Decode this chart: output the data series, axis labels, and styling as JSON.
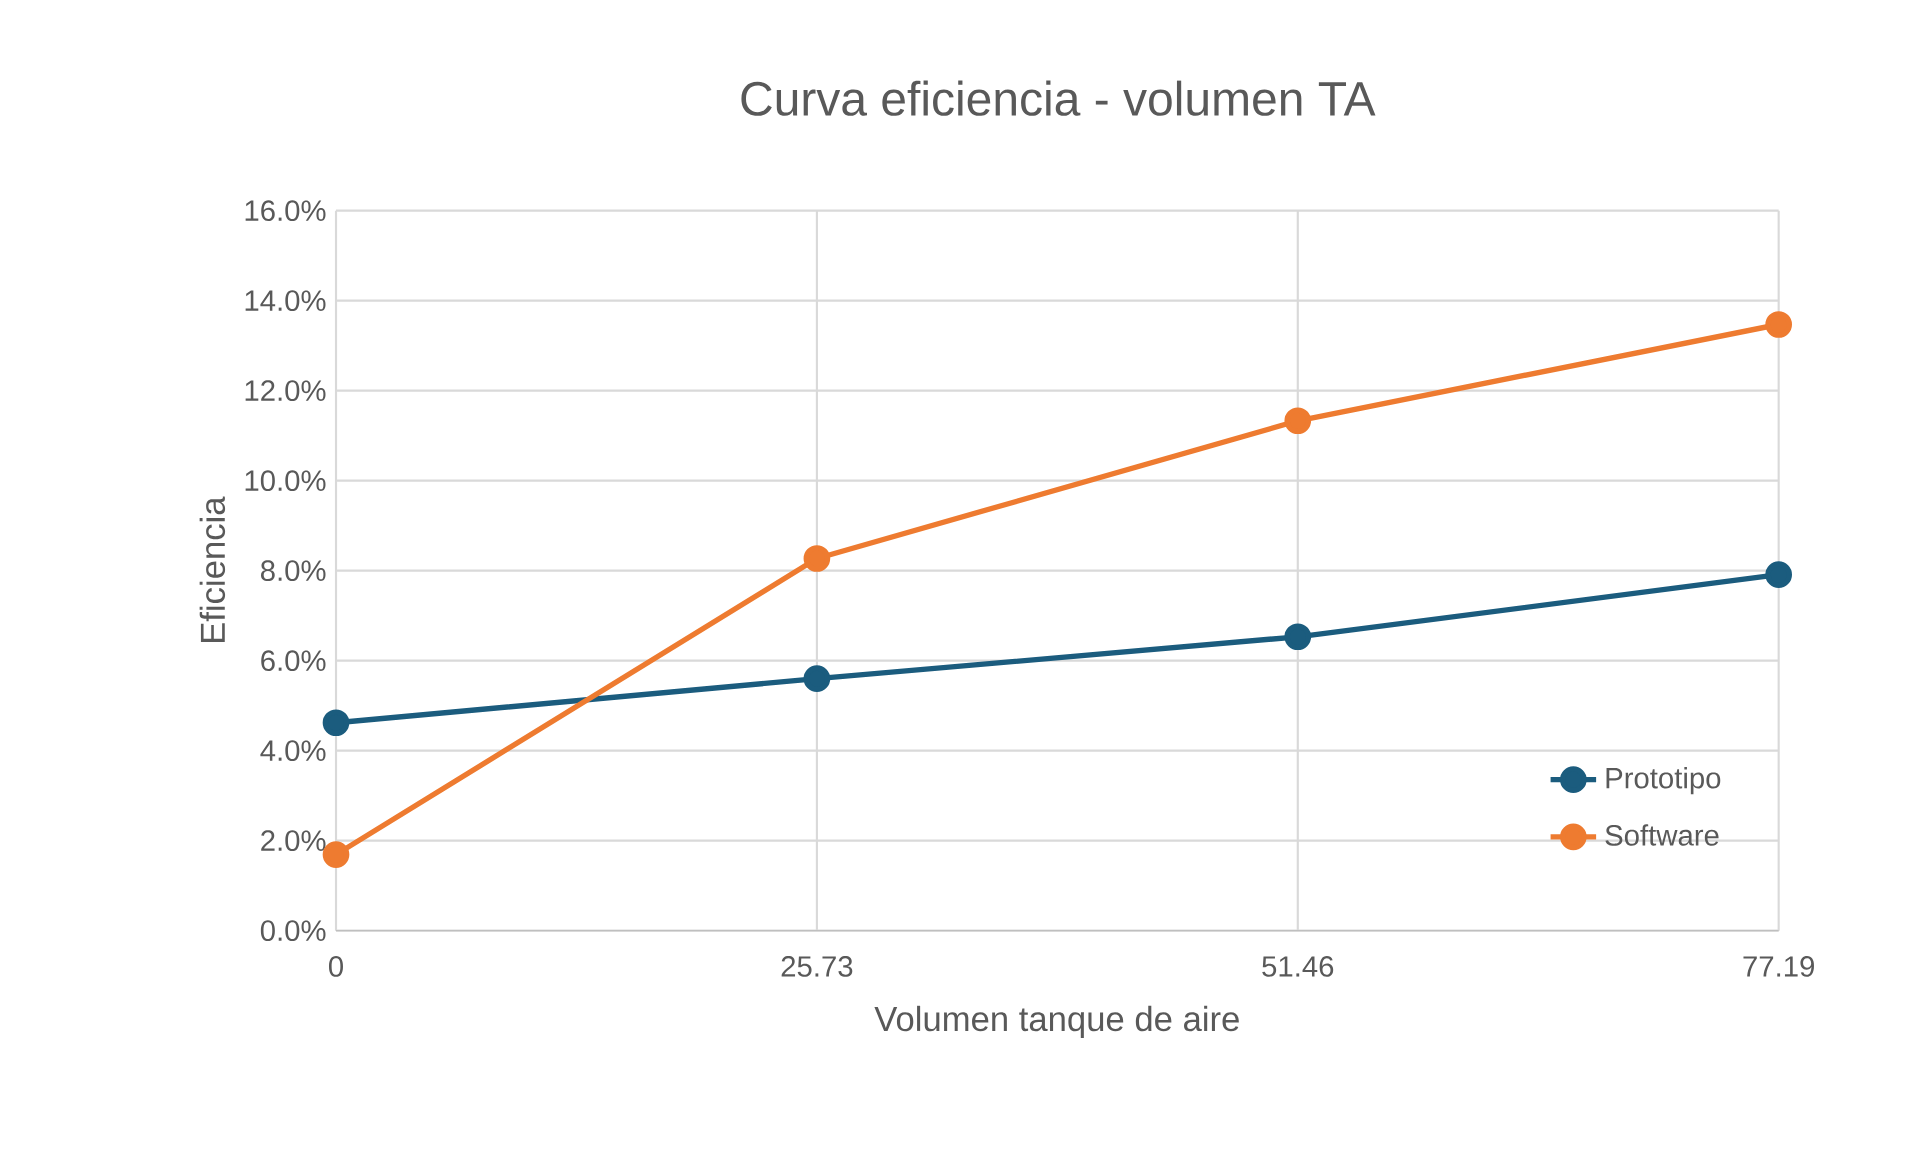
{
  "chart_data": {
    "type": "line",
    "title": "Curva eficiencia - volumen TA",
    "xlabel": "Volumen tanque de aire",
    "ylabel": "Eficiencia",
    "x": [
      0,
      25.73,
      51.46,
      77.19
    ],
    "series": [
      {
        "name": "Prototipo",
        "color": "#1b5c7e",
        "values": [
          4.62,
          5.6,
          6.53,
          7.91
        ]
      },
      {
        "name": "Software",
        "color": "#ee7b30",
        "values": [
          1.69,
          8.27,
          11.33,
          13.47
        ]
      }
    ],
    "xlim": [
      0,
      77.19
    ],
    "xticks": [
      0,
      25.73,
      51.46,
      77.19
    ],
    "ylim": [
      0,
      16
    ],
    "yticks": [
      {
        "value": 0,
        "label": "0.0%"
      },
      {
        "value": 2,
        "label": "2.0%"
      },
      {
        "value": 4,
        "label": "4.0%"
      },
      {
        "value": 6,
        "label": "6.0%"
      },
      {
        "value": 8,
        "label": "8.0%"
      },
      {
        "value": 10,
        "label": "10.0%"
      },
      {
        "value": 12,
        "label": "12.0%"
      },
      {
        "value": 14,
        "label": "14.0%"
      },
      {
        "value": 16,
        "label": "16.0%"
      }
    ],
    "grid": true,
    "legend": "right",
    "marker": "circle",
    "line_style": "solid"
  }
}
